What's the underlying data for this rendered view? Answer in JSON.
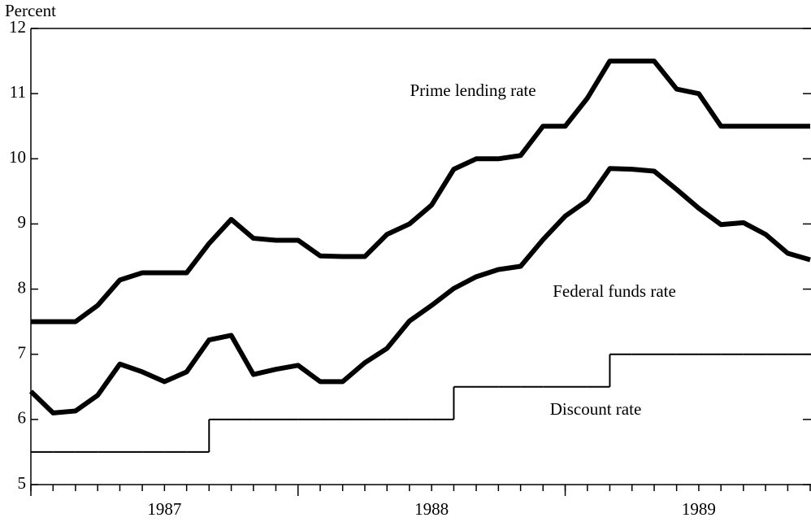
{
  "chart_data": {
    "type": "line",
    "y_axis_label": "Percent",
    "annotations": [
      "Prime lending rate",
      "Federal funds rate",
      "Discount rate"
    ],
    "x": [
      1987.0,
      1987.083,
      1987.167,
      1987.25,
      1987.333,
      1987.417,
      1987.5,
      1987.583,
      1987.667,
      1987.75,
      1987.833,
      1987.917,
      1988.0,
      1988.083,
      1988.167,
      1988.25,
      1988.333,
      1988.417,
      1988.5,
      1988.583,
      1988.667,
      1988.75,
      1988.833,
      1988.917,
      1989.0,
      1989.083,
      1989.167,
      1989.25,
      1989.333,
      1989.417,
      1989.5,
      1989.583,
      1989.667,
      1989.75,
      1989.833,
      1989.917
    ],
    "xlim": [
      1987.0,
      1989.917
    ],
    "xticks": [
      {
        "value": 1987.5,
        "label": "1987"
      },
      {
        "value": 1988.5,
        "label": "1988"
      },
      {
        "value": 1989.5,
        "label": "1989"
      }
    ],
    "x_major_ticks": [
      1987,
      1988,
      1989
    ],
    "ylim": [
      5,
      12
    ],
    "yticks": [
      5,
      6,
      7,
      8,
      9,
      10,
      11,
      12
    ],
    "grid": false,
    "series": [
      {
        "name": "Prime lending rate",
        "color": "#000000",
        "style": "line",
        "values": [
          7.5,
          7.5,
          7.5,
          7.75,
          8.14,
          8.25,
          8.25,
          8.25,
          8.7,
          9.07,
          8.78,
          8.75,
          8.75,
          8.51,
          8.5,
          8.5,
          8.84,
          9.0,
          9.29,
          9.84,
          10.0,
          10.0,
          10.05,
          10.5,
          10.5,
          10.93,
          11.5,
          11.5,
          11.5,
          11.07,
          11.0,
          10.5,
          10.5,
          10.5,
          10.5,
          10.5
        ]
      },
      {
        "name": "Federal funds rate",
        "color": "#000000",
        "style": "line",
        "values": [
          6.43,
          6.1,
          6.13,
          6.37,
          6.85,
          6.73,
          6.58,
          6.73,
          7.22,
          7.29,
          6.69,
          6.77,
          6.83,
          6.58,
          6.58,
          6.87,
          7.09,
          7.51,
          7.75,
          8.01,
          8.19,
          8.3,
          8.35,
          8.76,
          9.12,
          9.36,
          9.85,
          9.84,
          9.81,
          9.53,
          9.24,
          8.99,
          9.02,
          8.84,
          8.55,
          8.45
        ]
      },
      {
        "name": "Discount rate",
        "color": "#000000",
        "style": "step",
        "values": [
          5.5,
          5.5,
          5.5,
          5.5,
          5.5,
          5.5,
          5.5,
          5.5,
          6.0,
          6.0,
          6.0,
          6.0,
          6.0,
          6.0,
          6.0,
          6.0,
          6.0,
          6.0,
          6.0,
          6.5,
          6.5,
          6.5,
          6.5,
          6.5,
          6.5,
          6.5,
          7.0,
          7.0,
          7.0,
          7.0,
          7.0,
          7.0,
          7.0,
          7.0,
          7.0,
          7.0
        ]
      }
    ]
  }
}
